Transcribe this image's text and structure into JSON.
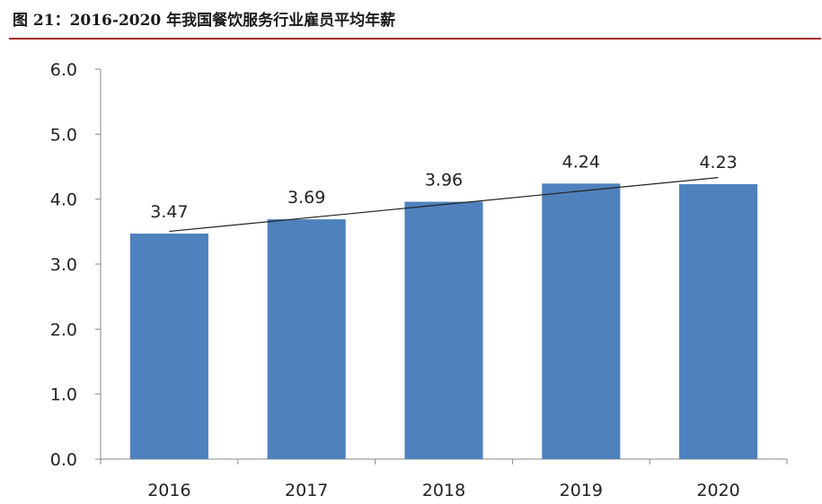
{
  "figure_title": "图 21：2016-2020 年我国餐饮服务行业雇员平均年薪",
  "colors": {
    "bar": "#4f81bd",
    "trendline": "#222222",
    "axis": "#888888",
    "title_rule": "#a52a2a"
  },
  "chart_data": {
    "type": "bar",
    "title": "",
    "xlabel": "",
    "ylabel": "",
    "categories": [
      "2016",
      "2017",
      "2018",
      "2019",
      "2020"
    ],
    "values": [
      3.47,
      3.69,
      3.96,
      4.24,
      4.23
    ],
    "data_labels": [
      "3.47",
      "3.69",
      "3.96",
      "4.24",
      "4.23"
    ],
    "ylim": [
      0,
      6
    ],
    "yticks": [
      "0.0",
      "1.0",
      "2.0",
      "3.0",
      "4.0",
      "5.0",
      "6.0"
    ],
    "grid": false,
    "legend": "none",
    "trendline": "linear"
  }
}
